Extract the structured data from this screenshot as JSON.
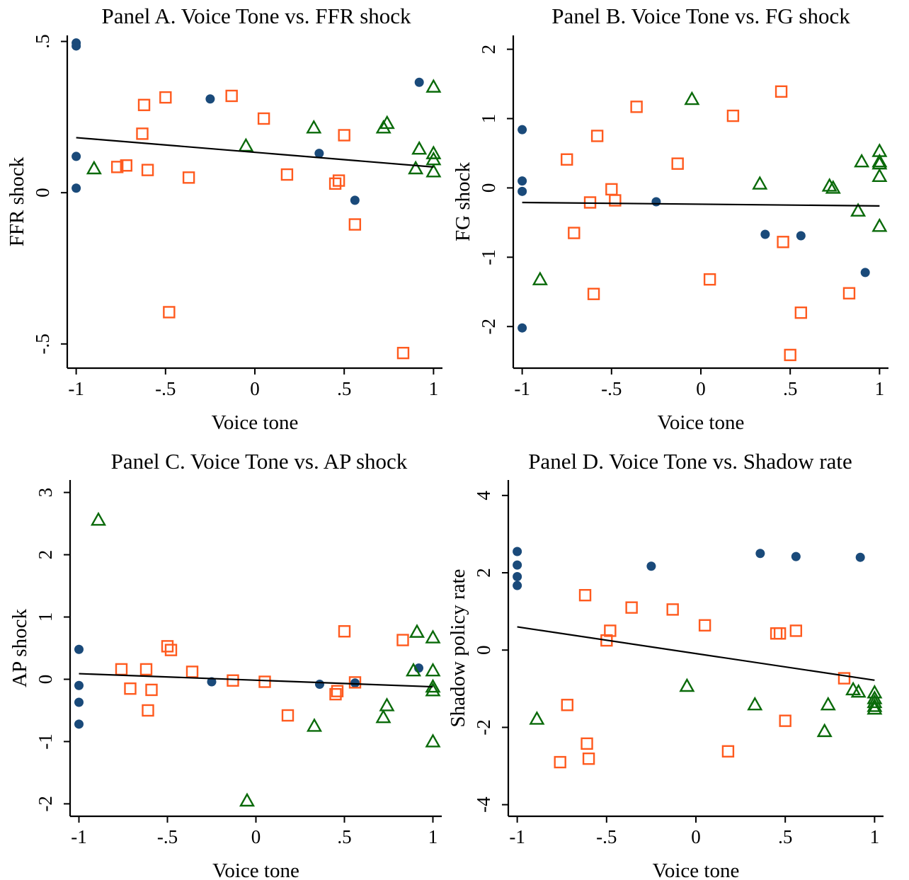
{
  "chart_data": [
    {
      "type": "scatter",
      "title": "Panel A. Voice Tone vs. FFR shock",
      "xlabel": "Voice tone",
      "ylabel": "FFR shock",
      "xlim": [
        -1.05,
        1.05
      ],
      "ylim": [
        -0.58,
        0.52
      ],
      "xticks": [
        -1,
        -0.5,
        0,
        0.5,
        1
      ],
      "xtick_labels": [
        "-1",
        "-.5",
        "0",
        ".5",
        "1"
      ],
      "yticks": [
        -0.5,
        0,
        0.5
      ],
      "ytick_labels": [
        "-.5",
        "0",
        ".5"
      ],
      "grid": false,
      "series": [
        {
          "marker": "circle",
          "color": "#1a4a7a",
          "points": [
            [
              -1,
              0.495
            ],
            [
              -1,
              0.485
            ],
            [
              -1,
              0.12
            ],
            [
              -1,
              0.015
            ],
            [
              -0.25,
              0.31
            ],
            [
              0.36,
              0.13
            ],
            [
              0.56,
              -0.025
            ],
            [
              0.92,
              0.365
            ]
          ]
        },
        {
          "marker": "square",
          "color": "#ff5a1e",
          "points": [
            [
              -0.77,
              0.085
            ],
            [
              -0.72,
              0.09
            ],
            [
              -0.62,
              0.29
            ],
            [
              -0.63,
              0.195
            ],
            [
              -0.6,
              0.075
            ],
            [
              -0.5,
              0.315
            ],
            [
              -0.48,
              -0.395
            ],
            [
              -0.37,
              0.05
            ],
            [
              -0.13,
              0.32
            ],
            [
              0.05,
              0.245
            ],
            [
              0.18,
              0.06
            ],
            [
              0.45,
              0.03
            ],
            [
              0.47,
              0.04
            ],
            [
              0.5,
              0.19
            ],
            [
              0.56,
              -0.105
            ],
            [
              0.83,
              -0.53
            ]
          ]
        },
        {
          "marker": "triangle",
          "color": "#0a6a0a",
          "points": [
            [
              -0.9,
              0.08
            ],
            [
              -0.05,
              0.155
            ],
            [
              0.33,
              0.215
            ],
            [
              0.72,
              0.215
            ],
            [
              0.74,
              0.23
            ],
            [
              0.9,
              0.08
            ],
            [
              0.92,
              0.145
            ],
            [
              1,
              0.35
            ],
            [
              1,
              0.13
            ],
            [
              1,
              0.11
            ],
            [
              1,
              0.07
            ]
          ]
        }
      ],
      "fit_line": {
        "x": [
          -1,
          1
        ],
        "y": [
          0.182,
          0.085
        ]
      }
    },
    {
      "type": "scatter",
      "title": "Panel B. Voice Tone vs. FG shock",
      "xlabel": "Voice tone",
      "ylabel": "FG shock",
      "xlim": [
        -1.05,
        1.05
      ],
      "ylim": [
        -2.6,
        2.2
      ],
      "xticks": [
        -1,
        -0.5,
        0,
        0.5,
        1
      ],
      "xtick_labels": [
        "-1",
        "-.5",
        "0",
        ".5",
        "1"
      ],
      "yticks": [
        -2,
        -1,
        0,
        1,
        2
      ],
      "ytick_labels": [
        "-2",
        "-1",
        "0",
        "1",
        "2"
      ],
      "grid": false,
      "series": [
        {
          "marker": "circle",
          "color": "#1a4a7a",
          "points": [
            [
              -1,
              0.84
            ],
            [
              -1,
              0.1
            ],
            [
              -1,
              -0.05
            ],
            [
              -1,
              -2.02
            ],
            [
              -0.25,
              -0.2
            ],
            [
              0.36,
              -0.67
            ],
            [
              0.56,
              -0.69
            ],
            [
              0.92,
              -1.22
            ]
          ]
        },
        {
          "marker": "square",
          "color": "#ff5a1e",
          "points": [
            [
              -0.75,
              0.41
            ],
            [
              -0.71,
              -0.65
            ],
            [
              -0.62,
              -0.21
            ],
            [
              -0.6,
              -1.53
            ],
            [
              -0.58,
              0.75
            ],
            [
              -0.5,
              -0.02
            ],
            [
              -0.48,
              -0.18
            ],
            [
              -0.36,
              1.17
            ],
            [
              -0.13,
              0.35
            ],
            [
              0.05,
              -1.32
            ],
            [
              0.18,
              1.04
            ],
            [
              0.45,
              1.39
            ],
            [
              0.46,
              -0.78
            ],
            [
              0.5,
              -2.41
            ],
            [
              0.56,
              -1.8
            ],
            [
              0.83,
              -1.52
            ]
          ]
        },
        {
          "marker": "triangle",
          "color": "#0a6a0a",
          "points": [
            [
              -0.9,
              -1.32
            ],
            [
              -0.05,
              1.28
            ],
            [
              0.33,
              0.06
            ],
            [
              0.72,
              0.03
            ],
            [
              0.74,
              0.0
            ],
            [
              0.88,
              -0.33
            ],
            [
              0.9,
              0.38
            ],
            [
              1,
              0.53
            ],
            [
              1,
              0.38
            ],
            [
              1,
              0.35
            ],
            [
              1,
              0.17
            ],
            [
              1,
              -0.55
            ]
          ]
        }
      ],
      "fit_line": {
        "x": [
          -1,
          1
        ],
        "y": [
          -0.21,
          -0.26
        ]
      }
    },
    {
      "type": "scatter",
      "title": "Panel C. Voice Tone vs. AP shock",
      "xlabel": "Voice tone",
      "ylabel": "AP shock",
      "xlim": [
        -1.05,
        1.05
      ],
      "ylim": [
        -2.2,
        3.2
      ],
      "xticks": [
        -1,
        -0.5,
        0,
        0.5,
        1
      ],
      "xtick_labels": [
        "-1",
        "-.5",
        "0",
        ".5",
        "1"
      ],
      "yticks": [
        -2,
        -1,
        0,
        1,
        2,
        3
      ],
      "ytick_labels": [
        "-2",
        "-1",
        "0",
        "1",
        "2",
        "3"
      ],
      "grid": false,
      "series": [
        {
          "marker": "circle",
          "color": "#1a4a7a",
          "points": [
            [
              -1,
              0.48
            ],
            [
              -1,
              -0.1
            ],
            [
              -1,
              -0.37
            ],
            [
              -1,
              -0.72
            ],
            [
              -0.25,
              -0.04
            ],
            [
              0.36,
              -0.08
            ],
            [
              0.56,
              -0.06
            ],
            [
              0.92,
              0.18
            ]
          ]
        },
        {
          "marker": "square",
          "color": "#ff5a1e",
          "points": [
            [
              -0.76,
              0.16
            ],
            [
              -0.71,
              -0.15
            ],
            [
              -0.62,
              0.16
            ],
            [
              -0.61,
              -0.5
            ],
            [
              -0.59,
              -0.17
            ],
            [
              -0.5,
              0.53
            ],
            [
              -0.48,
              0.47
            ],
            [
              -0.36,
              0.12
            ],
            [
              -0.13,
              -0.02
            ],
            [
              0.05,
              -0.04
            ],
            [
              0.18,
              -0.58
            ],
            [
              0.45,
              -0.24
            ],
            [
              0.46,
              -0.19
            ],
            [
              0.5,
              0.77
            ],
            [
              0.56,
              -0.05
            ],
            [
              0.83,
              0.63
            ]
          ]
        },
        {
          "marker": "triangle",
          "color": "#0a6a0a",
          "points": [
            [
              -0.89,
              2.56
            ],
            [
              -0.05,
              -1.95
            ],
            [
              0.33,
              -0.75
            ],
            [
              0.72,
              -0.61
            ],
            [
              0.74,
              -0.42
            ],
            [
              0.89,
              0.14
            ],
            [
              0.91,
              0.76
            ],
            [
              1,
              0.67
            ],
            [
              1,
              0.14
            ],
            [
              1,
              -0.12
            ],
            [
              1,
              -0.18
            ],
            [
              1,
              -1.0
            ]
          ]
        }
      ],
      "fit_line": {
        "x": [
          -1,
          1
        ],
        "y": [
          0.09,
          -0.12
        ]
      }
    },
    {
      "type": "scatter",
      "title": "Panel D. Voice Tone vs. Shadow rate",
      "xlabel": "Voice tone",
      "ylabel": "Shadow policy rate",
      "xlim": [
        -1.05,
        1.05
      ],
      "ylim": [
        -4.3,
        4.4
      ],
      "xticks": [
        -1,
        -0.5,
        0,
        0.5,
        1
      ],
      "xtick_labels": [
        "-1",
        "-.5",
        "0",
        ".5",
        "1"
      ],
      "yticks": [
        -4,
        -2,
        0,
        2,
        4
      ],
      "ytick_labels": [
        "-4",
        "-2",
        "0",
        "2",
        "4"
      ],
      "grid": false,
      "series": [
        {
          "marker": "circle",
          "color": "#1a4a7a",
          "points": [
            [
              -1,
              2.55
            ],
            [
              -1,
              2.2
            ],
            [
              -1,
              1.9
            ],
            [
              -1,
              1.67
            ],
            [
              -0.25,
              2.17
            ],
            [
              0.36,
              2.5
            ],
            [
              0.56,
              2.42
            ],
            [
              0.92,
              2.4
            ]
          ]
        },
        {
          "marker": "square",
          "color": "#ff5a1e",
          "points": [
            [
              -0.76,
              -2.9
            ],
            [
              -0.72,
              -1.42
            ],
            [
              -0.62,
              1.42
            ],
            [
              -0.61,
              -2.42
            ],
            [
              -0.6,
              -2.81
            ],
            [
              -0.5,
              0.25
            ],
            [
              -0.48,
              0.5
            ],
            [
              -0.36,
              1.1
            ],
            [
              -0.13,
              1.05
            ],
            [
              0.05,
              0.64
            ],
            [
              0.18,
              -2.62
            ],
            [
              0.45,
              0.43
            ],
            [
              0.47,
              0.43
            ],
            [
              0.5,
              -1.83
            ],
            [
              0.56,
              0.5
            ],
            [
              0.83,
              -0.73
            ]
          ]
        },
        {
          "marker": "triangle",
          "color": "#0a6a0a",
          "points": [
            [
              -0.89,
              -1.78
            ],
            [
              -0.05,
              -0.93
            ],
            [
              0.33,
              -1.41
            ],
            [
              0.72,
              -2.1
            ],
            [
              0.74,
              -1.41
            ],
            [
              0.88,
              -1.02
            ],
            [
              0.91,
              -1.08
            ],
            [
              1,
              -1.1
            ],
            [
              1,
              -1.25
            ],
            [
              1,
              -1.35
            ],
            [
              1,
              -1.45
            ],
            [
              1,
              -1.52
            ]
          ]
        }
      ],
      "fit_line": {
        "x": [
          -1,
          1
        ],
        "y": [
          0.6,
          -0.78
        ]
      }
    }
  ]
}
